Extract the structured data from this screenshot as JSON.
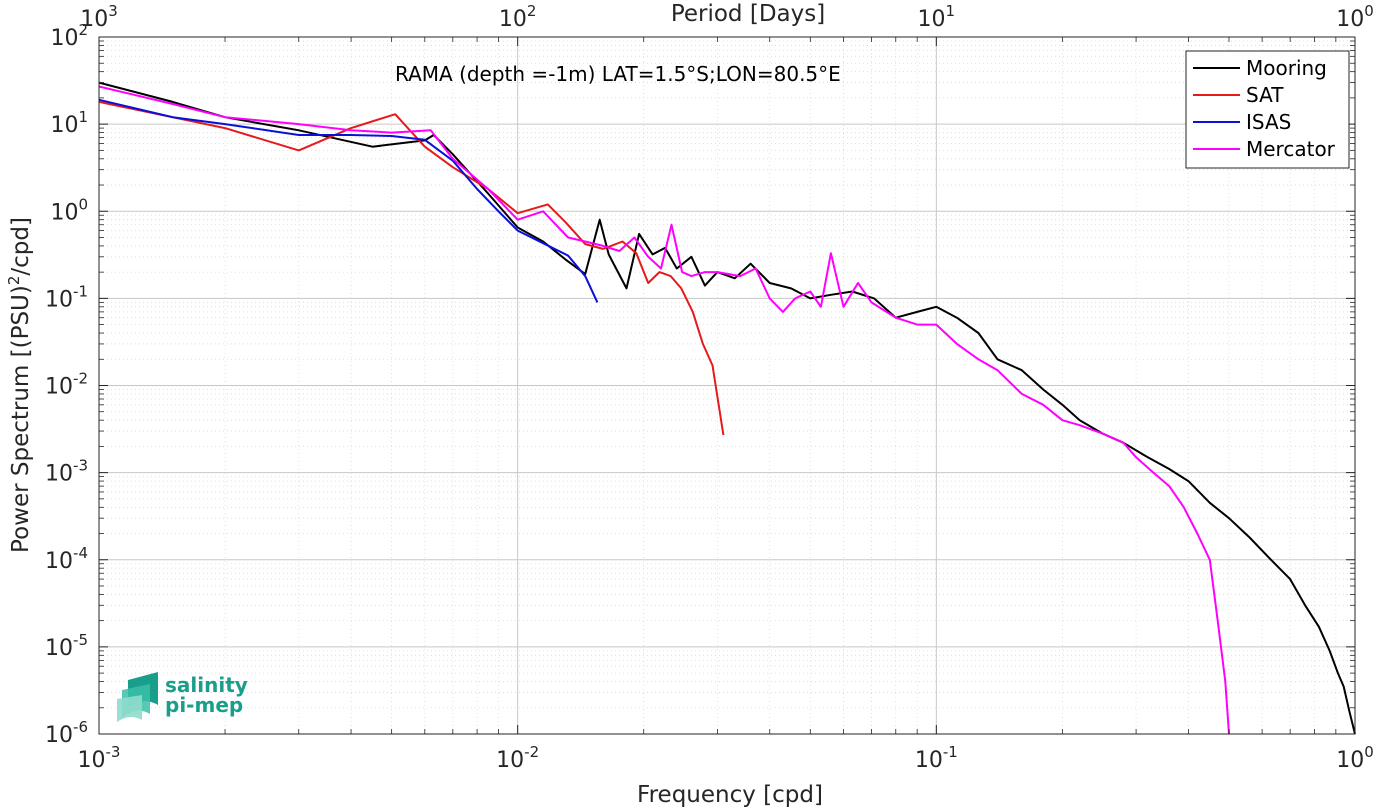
{
  "chart_data": {
    "type": "line",
    "title": "",
    "annotation": "RAMA (depth =-1m) LAT=1.5°S;LON=80.5°E",
    "xlabel": "Frequency [cpd]",
    "ylabel": "Power Spectrum [(PSU)²/cpd]",
    "top_xlabel": "Period [Days]",
    "xscale": "log",
    "yscale": "log",
    "xlim": [
      0.001,
      1
    ],
    "ylim": [
      1e-06,
      100
    ],
    "grid": true,
    "legend_position": "top-right",
    "x_ticks": [
      0.001,
      0.01,
      0.1,
      1
    ],
    "x_tick_labels": [
      {
        "base": "10",
        "exp": "-3"
      },
      {
        "base": "10",
        "exp": "-2"
      },
      {
        "base": "10",
        "exp": "-1"
      },
      {
        "base": "10",
        "exp": "0"
      }
    ],
    "top_ticks": [
      0.001,
      0.01,
      0.1,
      1
    ],
    "top_tick_labels": [
      {
        "base": "10",
        "exp": "3"
      },
      {
        "base": "10",
        "exp": "2"
      },
      {
        "base": "10",
        "exp": "1"
      },
      {
        "base": "10",
        "exp": "0"
      }
    ],
    "y_ticks": [
      1e-06,
      1e-05,
      0.0001,
      0.001,
      0.01,
      0.1,
      1,
      10,
      100
    ],
    "y_tick_labels": [
      {
        "base": "10",
        "exp": "-6"
      },
      {
        "base": "10",
        "exp": "-5"
      },
      {
        "base": "10",
        "exp": "-4"
      },
      {
        "base": "10",
        "exp": "-3"
      },
      {
        "base": "10",
        "exp": "-2"
      },
      {
        "base": "10",
        "exp": "-1"
      },
      {
        "base": "10",
        "exp": "0"
      },
      {
        "base": "10",
        "exp": "1"
      },
      {
        "base": "10",
        "exp": "2"
      }
    ],
    "series": [
      {
        "name": "Mooring",
        "color": "#000000",
        "x": [
          0.001,
          0.0015,
          0.002,
          0.003,
          0.0045,
          0.006,
          0.0063,
          0.007,
          0.0085,
          0.01,
          0.0115,
          0.013,
          0.0145,
          0.0157,
          0.0165,
          0.0182,
          0.0195,
          0.021,
          0.0225,
          0.024,
          0.026,
          0.028,
          0.03,
          0.033,
          0.036,
          0.04,
          0.045,
          0.05,
          0.056,
          0.063,
          0.071,
          0.08,
          0.09,
          0.1,
          0.112,
          0.126,
          0.14,
          0.16,
          0.18,
          0.2,
          0.22,
          0.25,
          0.28,
          0.32,
          0.36,
          0.4,
          0.45,
          0.5,
          0.56,
          0.63,
          0.7,
          0.76,
          0.82,
          0.87,
          0.91,
          0.94,
          0.97,
          1.0
        ],
        "y": [
          30,
          18,
          12,
          8.5,
          5.5,
          6.5,
          7.5,
          4.5,
          1.6,
          0.65,
          0.45,
          0.28,
          0.19,
          0.8,
          0.32,
          0.13,
          0.55,
          0.32,
          0.38,
          0.22,
          0.3,
          0.14,
          0.2,
          0.17,
          0.25,
          0.15,
          0.13,
          0.1,
          0.11,
          0.12,
          0.1,
          0.06,
          0.07,
          0.08,
          0.06,
          0.04,
          0.02,
          0.015,
          0.009,
          0.006,
          0.004,
          0.0028,
          0.0022,
          0.0015,
          0.0011,
          0.0008,
          0.00045,
          0.0003,
          0.00018,
          0.0001,
          6e-05,
          3e-05,
          1.7e-05,
          9e-06,
          5e-06,
          3.5e-06,
          1.8e-06,
          1e-06
        ]
      },
      {
        "name": "SAT",
        "color": "#e41a1c",
        "x": [
          0.001,
          0.002,
          0.003,
          0.004,
          0.0051,
          0.006,
          0.007,
          0.0085,
          0.01,
          0.0118,
          0.013,
          0.0145,
          0.016,
          0.0178,
          0.0192,
          0.0205,
          0.0218,
          0.0232,
          0.0246,
          0.0262,
          0.0277,
          0.0292,
          0.031
        ],
        "y": [
          18,
          9,
          5,
          9,
          13,
          5.5,
          3.2,
          1.8,
          0.95,
          1.2,
          0.75,
          0.42,
          0.37,
          0.45,
          0.33,
          0.15,
          0.2,
          0.18,
          0.13,
          0.07,
          0.03,
          0.017,
          0.0027
        ]
      },
      {
        "name": "ISAS",
        "color": "#0a10d8",
        "x": [
          0.001,
          0.0015,
          0.002,
          0.003,
          0.004,
          0.005,
          0.006,
          0.007,
          0.008,
          0.009,
          0.01,
          0.0115,
          0.0132,
          0.0145,
          0.0155
        ],
        "y": [
          19,
          12,
          10,
          7.5,
          7.5,
          7.3,
          6.6,
          3.8,
          1.8,
          1.0,
          0.6,
          0.43,
          0.31,
          0.18,
          0.09
        ]
      },
      {
        "name": "Mercator",
        "color": "#ff00ff",
        "x": [
          0.001,
          0.0015,
          0.002,
          0.003,
          0.004,
          0.005,
          0.0062,
          0.007,
          0.0085,
          0.01,
          0.0115,
          0.0132,
          0.0145,
          0.016,
          0.0175,
          0.019,
          0.0205,
          0.022,
          0.0233,
          0.0247,
          0.026,
          0.028,
          0.03,
          0.034,
          0.037,
          0.04,
          0.043,
          0.046,
          0.05,
          0.053,
          0.056,
          0.06,
          0.065,
          0.07,
          0.08,
          0.09,
          0.1,
          0.112,
          0.126,
          0.14,
          0.16,
          0.18,
          0.2,
          0.22,
          0.25,
          0.28,
          0.3,
          0.33,
          0.36,
          0.39,
          0.42,
          0.45,
          0.47,
          0.49,
          0.5
        ],
        "y": [
          27,
          17,
          12,
          10,
          8.5,
          8,
          8.5,
          4,
          1.8,
          0.8,
          1.0,
          0.5,
          0.45,
          0.4,
          0.35,
          0.5,
          0.3,
          0.22,
          0.7,
          0.2,
          0.18,
          0.2,
          0.2,
          0.18,
          0.22,
          0.1,
          0.07,
          0.1,
          0.12,
          0.08,
          0.33,
          0.08,
          0.15,
          0.09,
          0.06,
          0.05,
          0.05,
          0.03,
          0.02,
          0.015,
          0.008,
          0.006,
          0.004,
          0.0035,
          0.0028,
          0.0022,
          0.0015,
          0.001,
          0.0007,
          0.0004,
          0.0002,
          0.0001,
          2e-05,
          4e-06,
          1e-06
        ]
      }
    ]
  },
  "logo": {
    "line1": "salinity",
    "line2": "pi-mep"
  }
}
